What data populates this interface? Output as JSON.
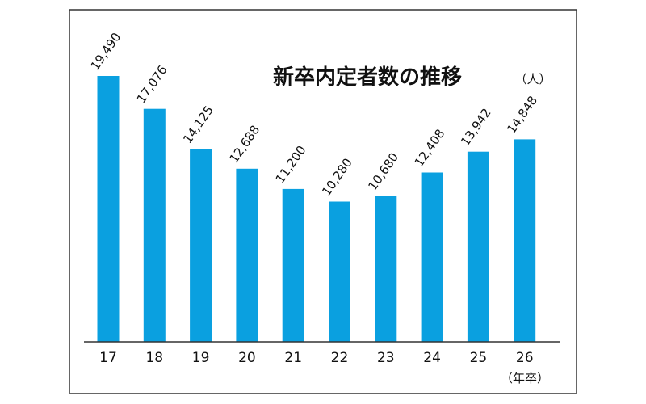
{
  "chart_data": {
    "type": "bar",
    "title": "新卒内定者数の推移",
    "unit_label": "（人）",
    "xlabel": "（年卒）",
    "ylabel": "",
    "categories": [
      "17",
      "18",
      "19",
      "20",
      "21",
      "22",
      "23",
      "24",
      "25",
      "26"
    ],
    "values": [
      19490,
      17076,
      14125,
      12688,
      11200,
      10280,
      10680,
      12408,
      13942,
      14848
    ],
    "value_labels": [
      "19,490",
      "17,076",
      "14,125",
      "12,688",
      "11,200",
      "10,280",
      "10,680",
      "12,408",
      "13,942",
      "14,848"
    ],
    "ylim": [
      0,
      19490
    ],
    "grid": false,
    "bar_color": "#0aa0e0"
  }
}
